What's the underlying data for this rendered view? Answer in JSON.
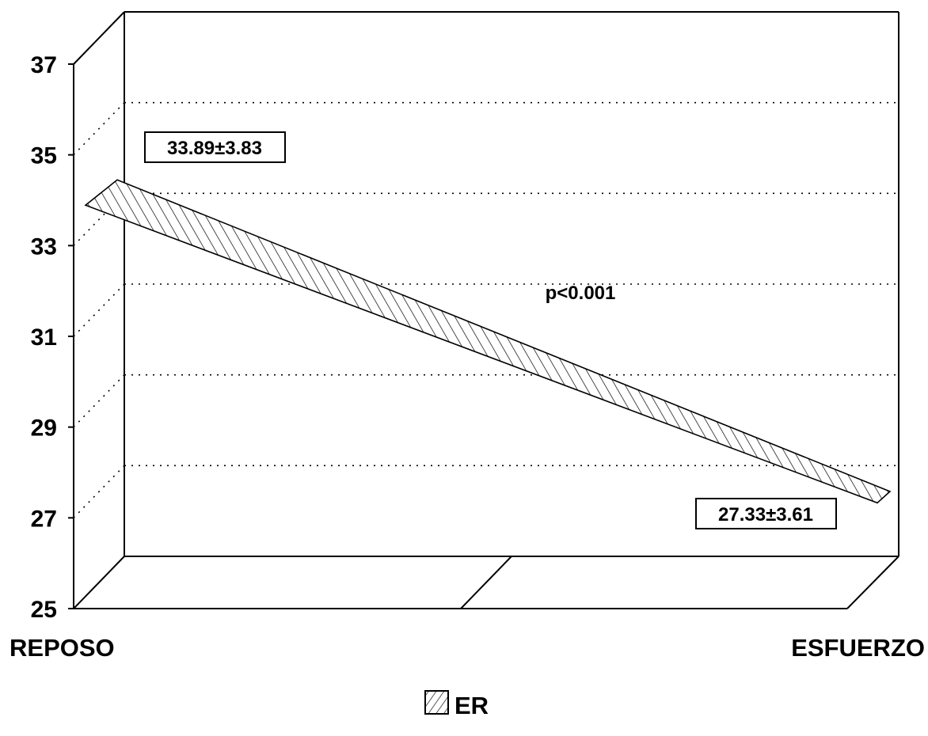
{
  "chart_data": {
    "type": "area",
    "categories": [
      "REPOSO",
      "ESFUERZO"
    ],
    "series": [
      {
        "name": "ER",
        "values": [
          33.89,
          27.33
        ],
        "sd": [
          3.83,
          3.61
        ]
      }
    ],
    "ylim": [
      25,
      37
    ],
    "yticks": [
      25,
      27,
      29,
      31,
      33,
      35,
      37
    ],
    "grid": true,
    "grid_style": "dotted",
    "three_d": true,
    "legend_position": "bottom-center",
    "annotations": [
      {
        "text": "33.89±3.83",
        "category": "REPOSO"
      },
      {
        "text": "27.33±3.61",
        "category": "ESFUERZO"
      },
      {
        "text": "p<0.001"
      }
    ],
    "title": "",
    "xlabel": "",
    "ylabel": ""
  },
  "colors": {
    "ink": "#000000",
    "background": "#ffffff"
  }
}
